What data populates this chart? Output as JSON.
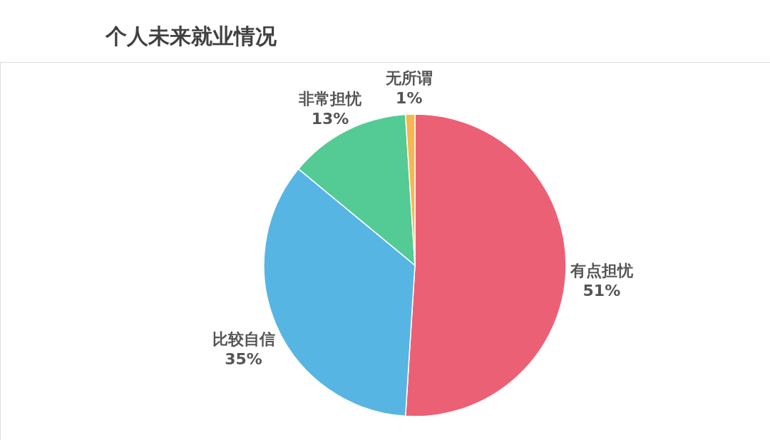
{
  "chart_data": {
    "type": "pie",
    "title": "个人未来就业情况",
    "categories": [
      "有点担忧",
      "比较自信",
      "非常担忧",
      "无所谓"
    ],
    "values": [
      51,
      35,
      13,
      1
    ],
    "value_labels": [
      "51%",
      "35%",
      "13%",
      "1%"
    ],
    "colors": [
      "#ec6075",
      "#57b5e3",
      "#54cb94",
      "#f9b54f"
    ],
    "legend": false
  }
}
